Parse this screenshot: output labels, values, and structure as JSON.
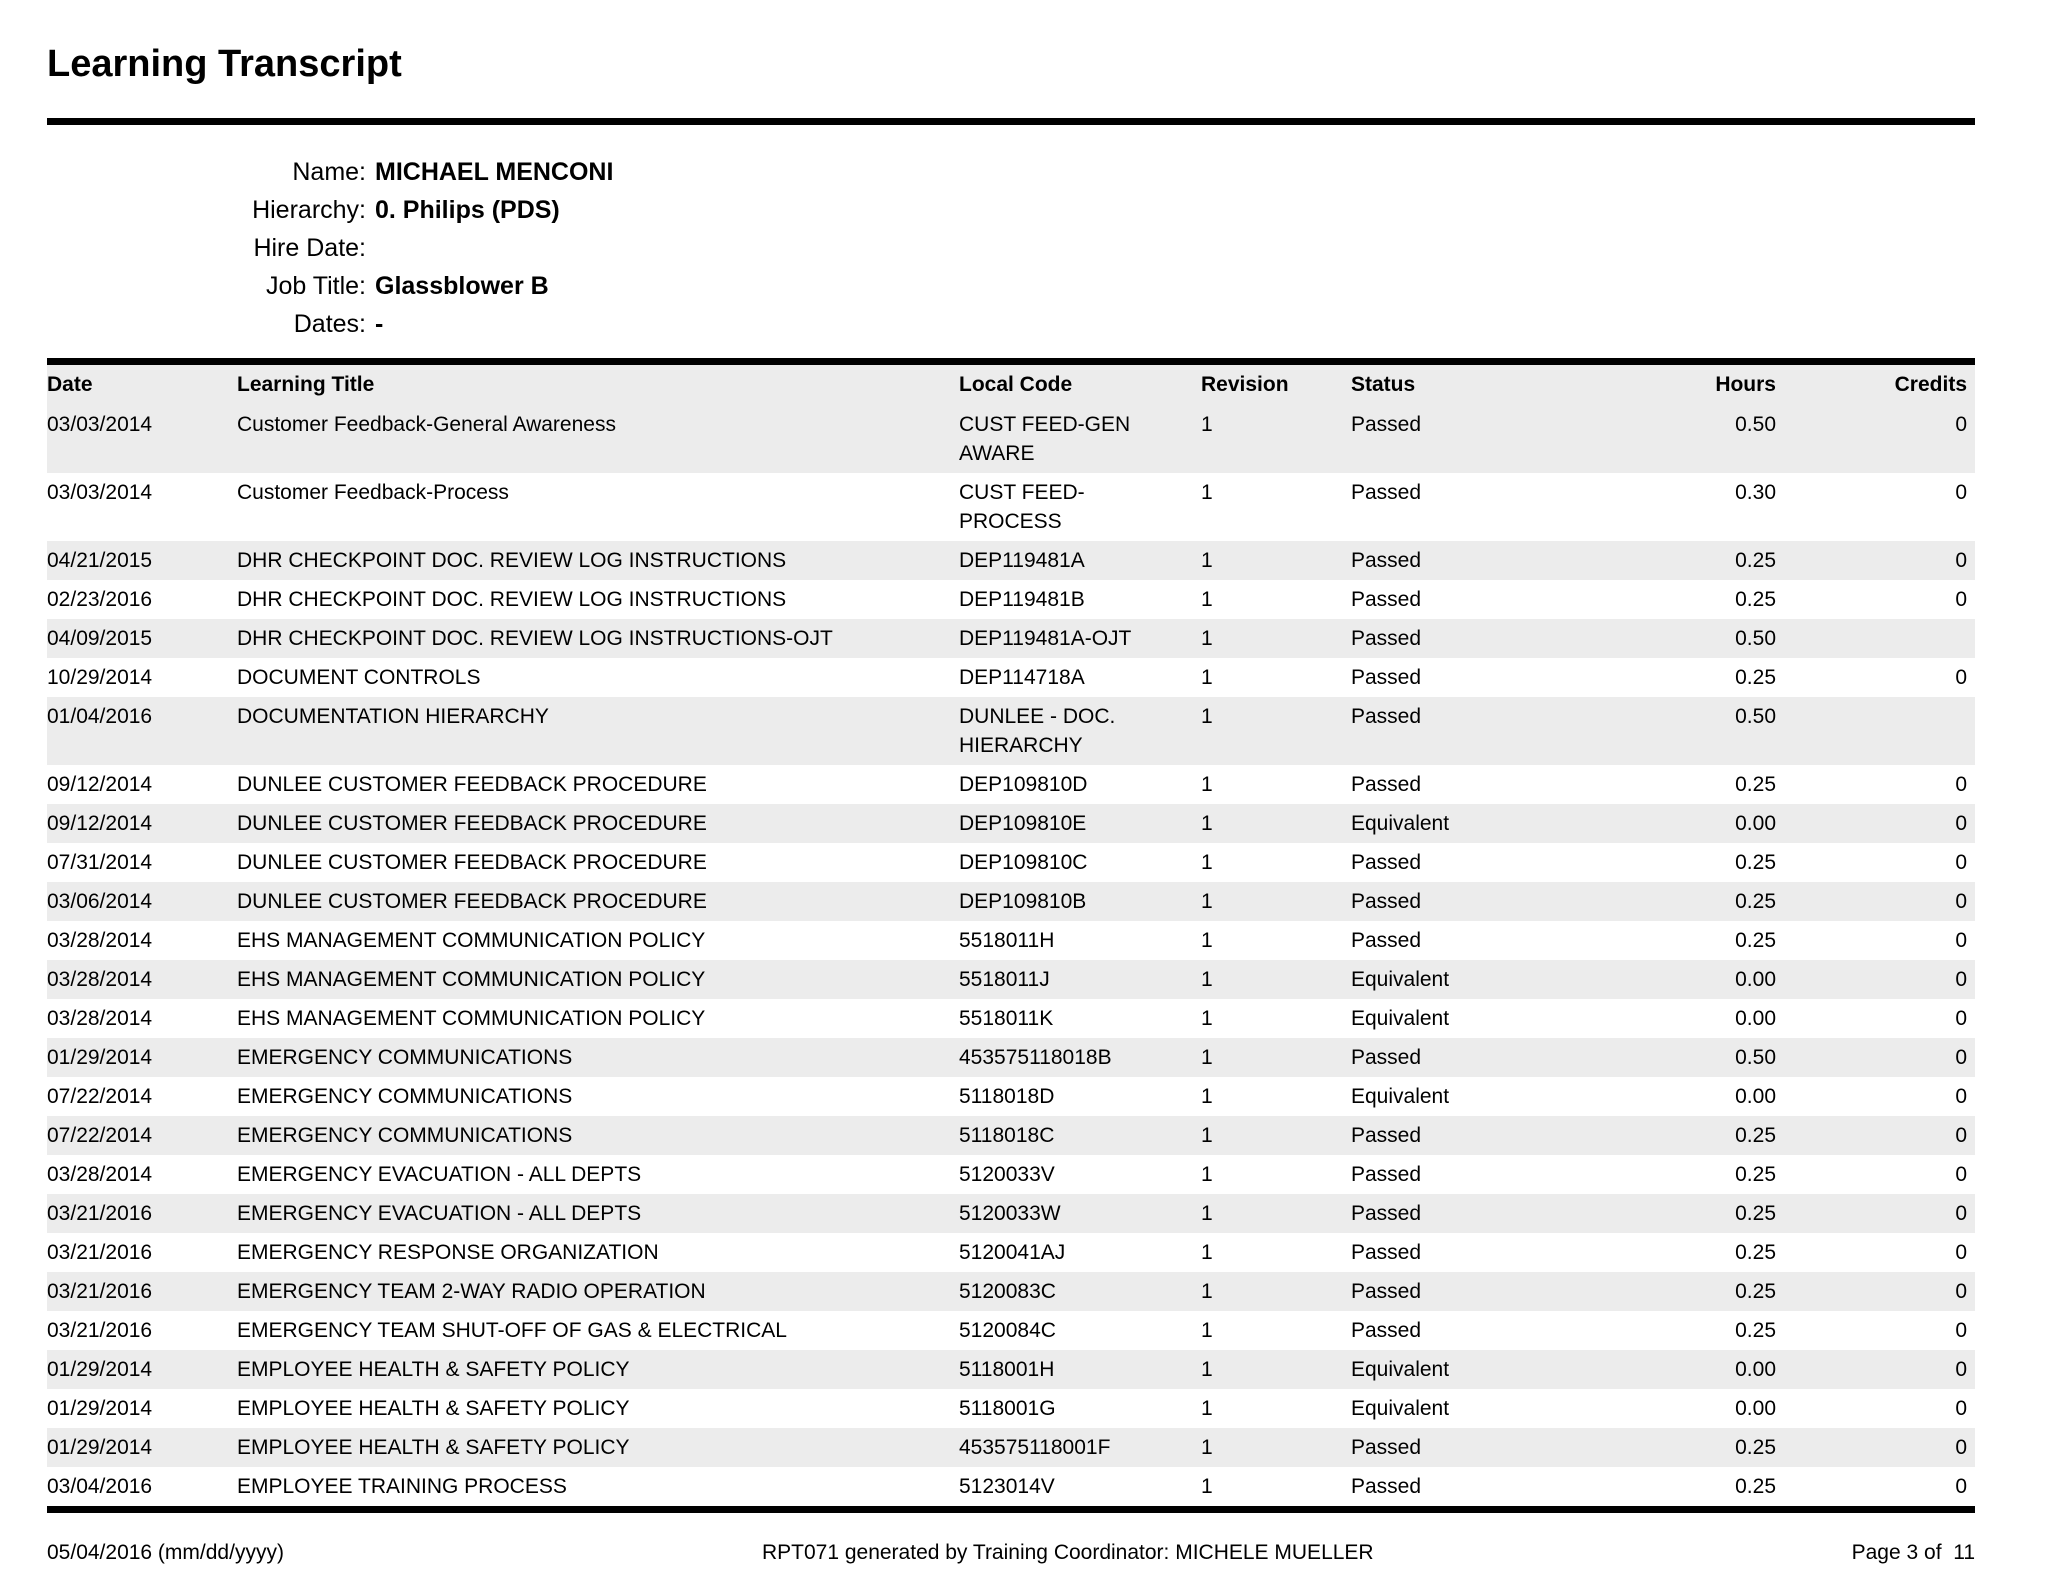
{
  "title": "Learning Transcript",
  "info": {
    "fields": [
      {
        "label": "Name:",
        "value": "MICHAEL MENCONI"
      },
      {
        "label": "Hierarchy:",
        "value": "0. Philips (PDS)"
      },
      {
        "label": "Hire Date:",
        "value": ""
      },
      {
        "label": "Job Title:",
        "value": "Glassblower B"
      },
      {
        "label": "Dates:",
        "value": "-"
      }
    ]
  },
  "table": {
    "columns": [
      "Date",
      "Learning Title",
      "Local Code",
      "Revision",
      "Status",
      "Hours",
      "Credits"
    ],
    "rows": [
      {
        "date": "03/03/2014",
        "title": "Customer Feedback-General Awareness",
        "code": "CUST FEED-GEN AWARE",
        "revision": "1",
        "status": "Passed",
        "hours": "0.50",
        "credits": "0"
      },
      {
        "date": "03/03/2014",
        "title": "Customer Feedback-Process",
        "code": "CUST FEED-PROCESS",
        "revision": "1",
        "status": "Passed",
        "hours": "0.30",
        "credits": "0"
      },
      {
        "date": "04/21/2015",
        "title": "DHR CHECKPOINT DOC. REVIEW LOG INSTRUCTIONS",
        "code": "DEP119481A",
        "revision": "1",
        "status": "Passed",
        "hours": "0.25",
        "credits": "0"
      },
      {
        "date": "02/23/2016",
        "title": "DHR CHECKPOINT DOC. REVIEW LOG INSTRUCTIONS",
        "code": "DEP119481B",
        "revision": "1",
        "status": "Passed",
        "hours": "0.25",
        "credits": "0"
      },
      {
        "date": "04/09/2015",
        "title": "DHR CHECKPOINT DOC. REVIEW LOG INSTRUCTIONS-OJT",
        "code": "DEP119481A-OJT",
        "revision": "1",
        "status": "Passed",
        "hours": "0.50",
        "credits": ""
      },
      {
        "date": "10/29/2014",
        "title": "DOCUMENT CONTROLS",
        "code": "DEP114718A",
        "revision": "1",
        "status": "Passed",
        "hours": "0.25",
        "credits": "0"
      },
      {
        "date": "01/04/2016",
        "title": "DOCUMENTATION HIERARCHY",
        "code": "DUNLEE - DOC. HIERARCHY",
        "revision": "1",
        "status": "Passed",
        "hours": "0.50",
        "credits": ""
      },
      {
        "date": "09/12/2014",
        "title": "DUNLEE CUSTOMER FEEDBACK PROCEDURE",
        "code": "DEP109810D",
        "revision": "1",
        "status": "Passed",
        "hours": "0.25",
        "credits": "0"
      },
      {
        "date": "09/12/2014",
        "title": "DUNLEE CUSTOMER FEEDBACK PROCEDURE",
        "code": "DEP109810E",
        "revision": "1",
        "status": "Equivalent",
        "hours": "0.00",
        "credits": "0"
      },
      {
        "date": "07/31/2014",
        "title": "DUNLEE CUSTOMER FEEDBACK PROCEDURE",
        "code": "DEP109810C",
        "revision": "1",
        "status": "Passed",
        "hours": "0.25",
        "credits": "0"
      },
      {
        "date": "03/06/2014",
        "title": "DUNLEE CUSTOMER FEEDBACK PROCEDURE",
        "code": "DEP109810B",
        "revision": "1",
        "status": "Passed",
        "hours": "0.25",
        "credits": "0"
      },
      {
        "date": "03/28/2014",
        "title": "EHS MANAGEMENT COMMUNICATION POLICY",
        "code": "5518011H",
        "revision": "1",
        "status": "Passed",
        "hours": "0.25",
        "credits": "0"
      },
      {
        "date": "03/28/2014",
        "title": "EHS MANAGEMENT COMMUNICATION POLICY",
        "code": "5518011J",
        "revision": "1",
        "status": "Equivalent",
        "hours": "0.00",
        "credits": "0"
      },
      {
        "date": "03/28/2014",
        "title": "EHS MANAGEMENT COMMUNICATION POLICY",
        "code": "5518011K",
        "revision": "1",
        "status": "Equivalent",
        "hours": "0.00",
        "credits": "0"
      },
      {
        "date": "01/29/2014",
        "title": "EMERGENCY COMMUNICATIONS",
        "code": "453575118018B",
        "revision": "1",
        "status": "Passed",
        "hours": "0.50",
        "credits": "0"
      },
      {
        "date": "07/22/2014",
        "title": "EMERGENCY COMMUNICATIONS",
        "code": "5118018D",
        "revision": "1",
        "status": "Equivalent",
        "hours": "0.00",
        "credits": "0"
      },
      {
        "date": "07/22/2014",
        "title": "EMERGENCY COMMUNICATIONS",
        "code": "5118018C",
        "revision": "1",
        "status": "Passed",
        "hours": "0.25",
        "credits": "0"
      },
      {
        "date": "03/28/2014",
        "title": "EMERGENCY EVACUATION - ALL DEPTS",
        "code": "5120033V",
        "revision": "1",
        "status": "Passed",
        "hours": "0.25",
        "credits": "0"
      },
      {
        "date": "03/21/2016",
        "title": "EMERGENCY EVACUATION - ALL DEPTS",
        "code": "5120033W",
        "revision": "1",
        "status": "Passed",
        "hours": "0.25",
        "credits": "0"
      },
      {
        "date": "03/21/2016",
        "title": "EMERGENCY RESPONSE ORGANIZATION",
        "code": "5120041AJ",
        "revision": "1",
        "status": "Passed",
        "hours": "0.25",
        "credits": "0"
      },
      {
        "date": "03/21/2016",
        "title": "EMERGENCY TEAM 2-WAY RADIO OPERATION",
        "code": "5120083C",
        "revision": "1",
        "status": "Passed",
        "hours": "0.25",
        "credits": "0"
      },
      {
        "date": "03/21/2016",
        "title": "EMERGENCY TEAM SHUT-OFF OF GAS & ELECTRICAL",
        "code": "5120084C",
        "revision": "1",
        "status": "Passed",
        "hours": "0.25",
        "credits": "0"
      },
      {
        "date": "01/29/2014",
        "title": "EMPLOYEE HEALTH & SAFETY POLICY",
        "code": "5118001H",
        "revision": "1",
        "status": "Equivalent",
        "hours": "0.00",
        "credits": "0"
      },
      {
        "date": "01/29/2014",
        "title": "EMPLOYEE HEALTH & SAFETY POLICY",
        "code": "5118001G",
        "revision": "1",
        "status": "Equivalent",
        "hours": "0.00",
        "credits": "0"
      },
      {
        "date": "01/29/2014",
        "title": "EMPLOYEE HEALTH & SAFETY POLICY",
        "code": "453575118001F",
        "revision": "1",
        "status": "Passed",
        "hours": "0.25",
        "credits": "0"
      },
      {
        "date": "03/04/2016",
        "title": "EMPLOYEE TRAINING PROCESS",
        "code": "5123014V",
        "revision": "1",
        "status": "Passed",
        "hours": "0.25",
        "credits": "0"
      }
    ]
  },
  "footer": {
    "date": "05/04/2016 (mm/dd/yyyy)",
    "generated": "RPT071 generated by Training Coordinator: MICHELE MUELLER",
    "page": "Page 3 of  11"
  },
  "colors": {
    "row_stripe": "#ececec",
    "rule": "#000000"
  }
}
